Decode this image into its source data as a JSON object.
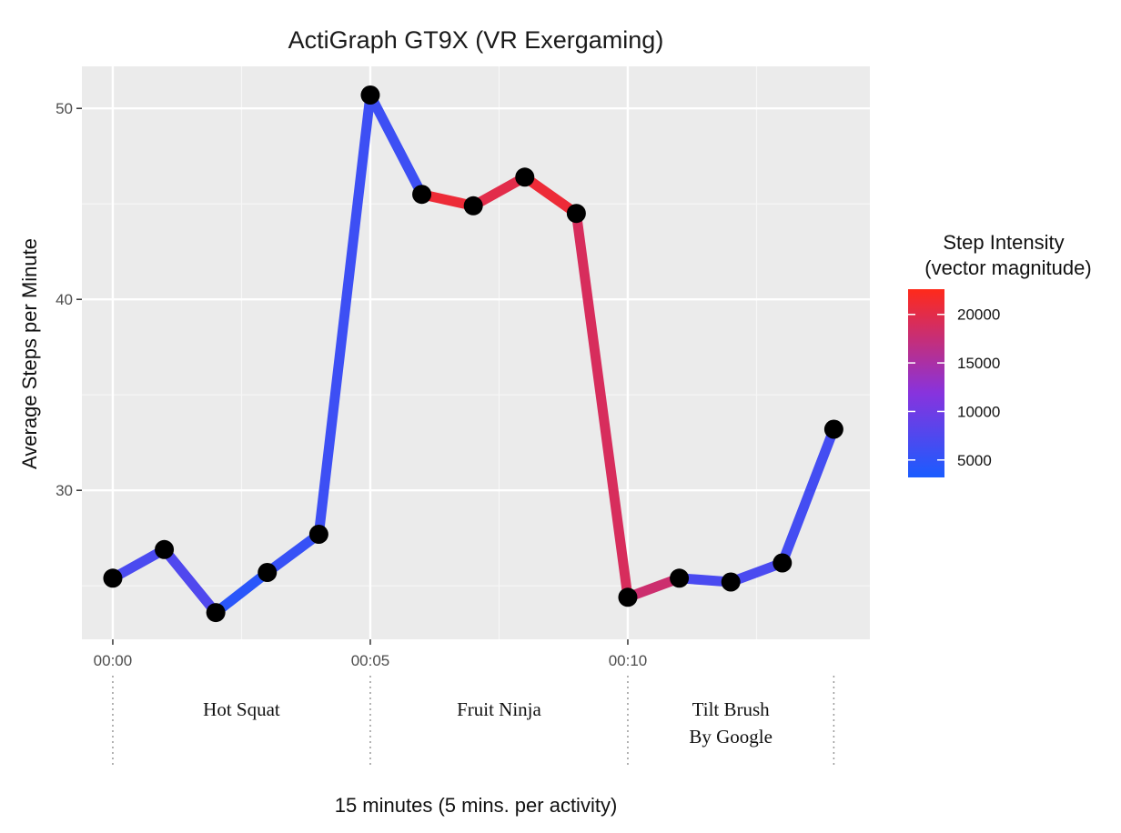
{
  "chart_data": {
    "type": "line",
    "title": "ActiGraph GT9X (VR Exergaming)",
    "xlabel": "15 minutes (5 mins. per activity)",
    "ylabel": "Average Steps per Minute",
    "x": [
      0,
      1,
      2,
      3,
      4,
      5,
      6,
      7,
      8,
      9,
      10,
      11,
      12,
      13,
      14
    ],
    "x_tick_values": [
      0,
      5,
      10
    ],
    "x_tick_labels": [
      "00:00",
      "00:05",
      "00:10"
    ],
    "xlim": [
      -0.6,
      14.7
    ],
    "ylim": [
      22.2,
      52.2
    ],
    "y_ticks": [
      30,
      40,
      50
    ],
    "series": [
      {
        "values": [
          25.4,
          26.9,
          23.6,
          25.7,
          27.7,
          50.7,
          45.5,
          44.9,
          46.4,
          44.5,
          24.4,
          25.4,
          25.2,
          26.2,
          33.2
        ],
        "intensity": [
          7000,
          7500,
          4500,
          5500,
          6000,
          6000,
          21000,
          20000,
          21000,
          19000,
          18000,
          7000,
          7000,
          6500,
          7000
        ]
      }
    ],
    "colorbar": {
      "title_line1": "Step Intensity",
      "title_line2": "(vector magnitude)",
      "range": [
        3200,
        22600
      ],
      "ticks": [
        5000,
        10000,
        15000,
        20000
      ],
      "tick_labels": [
        "5000",
        "10000",
        "15000",
        "20000"
      ],
      "low_color": "#1a5cff",
      "mid_color": "#8833dd",
      "high_color": "#ff2a1a",
      "placement": "right"
    },
    "activities": [
      {
        "label_lines": [
          "Hot Squat"
        ],
        "start": 0,
        "end": 5
      },
      {
        "label_lines": [
          "Fruit Ninja"
        ],
        "start": 5,
        "end": 10
      },
      {
        "label_lines": [
          "Tilt Brush",
          "By Google"
        ],
        "start": 10,
        "end": 14
      }
    ],
    "grid": true,
    "panel_color": "#ebebeb",
    "line_color": "#2b2bff",
    "point_color": "#000000"
  }
}
